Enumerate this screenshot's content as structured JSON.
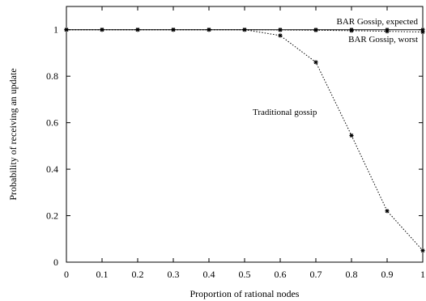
{
  "chart_data": {
    "type": "line",
    "xlabel": "Proportion of rational nodes",
    "ylabel": "Probability of receiving an update",
    "xlim": [
      0,
      1
    ],
    "ylim": [
      0,
      1.1
    ],
    "x_ticks": [
      0,
      0.1,
      0.2,
      0.3,
      0.4,
      0.5,
      0.6,
      0.7,
      0.8,
      0.9,
      1
    ],
    "x_tick_labels": [
      "0",
      "0.1",
      "0.2",
      "0.3",
      "0.4",
      "0.5",
      "0.6",
      "0.7",
      "0.8",
      "0.9",
      "1"
    ],
    "y_ticks": [
      0,
      0.2,
      0.4,
      0.6,
      0.8,
      1
    ],
    "y_tick_labels": [
      "0",
      "0.2",
      "0.4",
      "0.6",
      "0.8",
      "1"
    ],
    "grid": false,
    "series": [
      {
        "name": "BAR Gossip, expected",
        "x": [
          0,
          0.1,
          0.2,
          0.3,
          0.4,
          0.5,
          0.6,
          0.7,
          0.8,
          0.9,
          1
        ],
        "values": [
          1,
          1,
          1,
          1,
          1,
          1,
          1,
          1,
          1,
          1,
          1
        ],
        "style": "solid",
        "marker": "star"
      },
      {
        "name": "BAR Gossip, worst",
        "x": [
          0,
          0.1,
          0.2,
          0.3,
          0.4,
          0.5,
          0.6,
          0.7,
          0.8,
          0.9,
          1
        ],
        "values": [
          1,
          1,
          1,
          1,
          1,
          1,
          0.999,
          0.998,
          0.996,
          0.993,
          0.99
        ],
        "style": "dotted",
        "marker": "star"
      },
      {
        "name": "Traditional gossip",
        "x": [
          0,
          0.1,
          0.2,
          0.3,
          0.4,
          0.5,
          0.6,
          0.7,
          0.8,
          0.9,
          1
        ],
        "values": [
          1,
          1,
          1,
          1,
          1,
          1,
          0.975,
          0.86,
          0.545,
          0.22,
          0.05
        ],
        "style": "dotted",
        "marker": "star"
      }
    ],
    "annotations": [
      {
        "text": "BAR Gossip, expected",
        "series": 0
      },
      {
        "text": "BAR Gossip, worst",
        "series": 1
      },
      {
        "text": "Traditional gossip",
        "series": 2
      }
    ],
    "colors": {
      "line": "#000000",
      "background": "#ffffff"
    }
  }
}
